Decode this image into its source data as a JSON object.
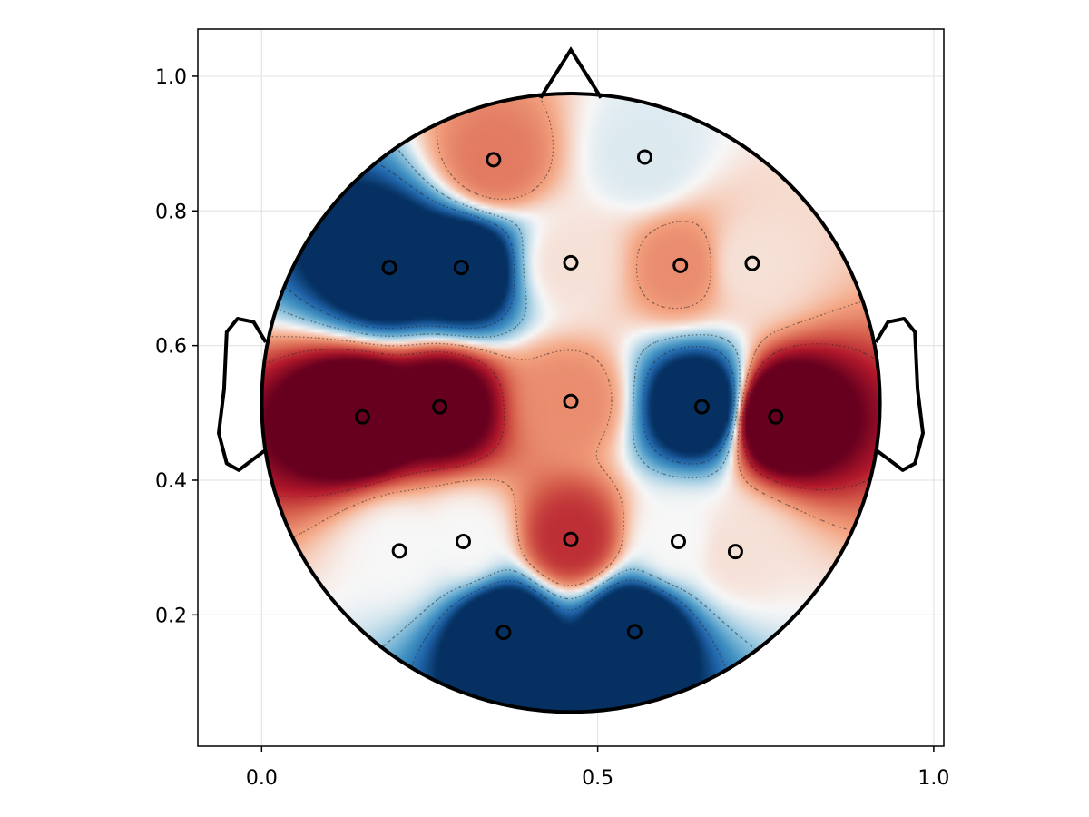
{
  "chart_data": {
    "type": "heatmap",
    "subtype": "eeg-topoplot",
    "title": "",
    "xlabel": "",
    "ylabel": "",
    "xlim": [
      -0.095,
      1.015
    ],
    "ylim": [
      0.005,
      1.07
    ],
    "x_ticks": [
      0.0,
      0.5,
      1.0
    ],
    "x_tick_labels": [
      "0.0",
      "0.5",
      "1.0"
    ],
    "y_ticks": [
      0.2,
      0.4,
      0.6,
      0.8,
      1.0
    ],
    "y_tick_labels": [
      "0.2",
      "0.4",
      "0.6",
      "0.8",
      "1.0"
    ],
    "grid": true,
    "colormap": "RdBu (reversed: red = high, blue = low)",
    "colors": {
      "high": "#67001f",
      "mid": "#f7f7f7",
      "low": "#053061",
      "electrode": "#000000",
      "grid": "#e5e5e5"
    },
    "head": {
      "center": [
        0.46,
        0.515
      ],
      "radius": 0.46
    },
    "electrodes": [
      {
        "x": 0.345,
        "y": 0.876,
        "v": 0.3
      },
      {
        "x": 0.57,
        "y": 0.88,
        "v": -0.05
      },
      {
        "x": 0.19,
        "y": 0.716,
        "v": -1.0
      },
      {
        "x": 0.297,
        "y": 0.716,
        "v": -1.0
      },
      {
        "x": 0.46,
        "y": 0.723,
        "v": 0.05
      },
      {
        "x": 0.623,
        "y": 0.719,
        "v": 0.25
      },
      {
        "x": 0.73,
        "y": 0.722,
        "v": 0.05
      },
      {
        "x": 0.15,
        "y": 0.494,
        "v": 1.0
      },
      {
        "x": 0.265,
        "y": 0.509,
        "v": 0.85
      },
      {
        "x": 0.46,
        "y": 0.517,
        "v": 0.25
      },
      {
        "x": 0.655,
        "y": 0.509,
        "v": -1.0
      },
      {
        "x": 0.765,
        "y": 0.494,
        "v": 1.0
      },
      {
        "x": 0.205,
        "y": 0.295,
        "v": 0.0
      },
      {
        "x": 0.3,
        "y": 0.309,
        "v": 0.0
      },
      {
        "x": 0.46,
        "y": 0.312,
        "v": 0.5
      },
      {
        "x": 0.62,
        "y": 0.309,
        "v": 0.0
      },
      {
        "x": 0.705,
        "y": 0.294,
        "v": 0.05
      },
      {
        "x": 0.36,
        "y": 0.174,
        "v": -1.0
      },
      {
        "x": 0.555,
        "y": 0.175,
        "v": -1.0
      }
    ]
  }
}
